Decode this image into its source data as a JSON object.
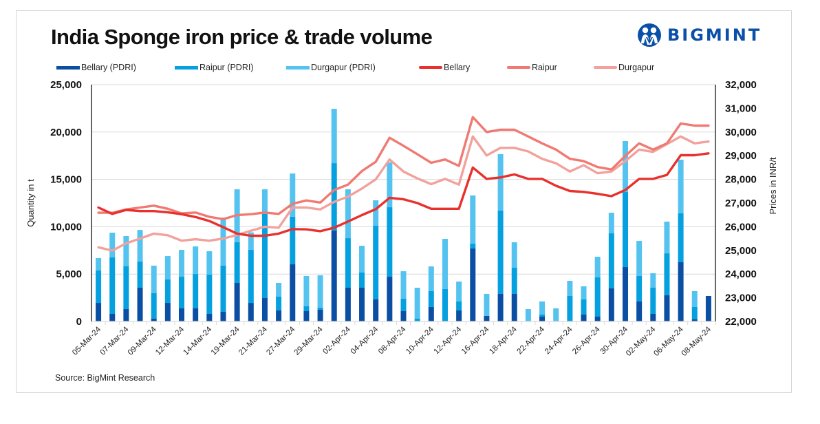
{
  "header": {
    "title": "India Sponge iron price & trade volume",
    "brand": "BIGMINT",
    "brand_icon": "bigmint-people-icon"
  },
  "footer": {
    "source": "Source: BigMint Research"
  },
  "colors": {
    "bellary_bar": "#0a4fa3",
    "raipur_bar": "#05a0df",
    "durgapur_bar": "#55c3f0",
    "bellary_line": "#e8302c",
    "raipur_line": "#f07a72",
    "durgapur_line": "#f2a19c",
    "brand": "#0a4fa8"
  },
  "legend": [
    {
      "label": "Bellary (PDRI)",
      "kind": "bar",
      "color": "#0a4fa3"
    },
    {
      "label": "Raipur (PDRI)",
      "kind": "bar",
      "color": "#05a0df"
    },
    {
      "label": "Durgapur (PDRI)",
      "kind": "bar",
      "color": "#55c3f0"
    },
    {
      "label": "Bellary",
      "kind": "line",
      "color": "#e8302c"
    },
    {
      "label": "Raipur",
      "kind": "line",
      "color": "#f07a72"
    },
    {
      "label": "Durgapur",
      "kind": "line",
      "color": "#f2a19c"
    }
  ],
  "chart_data": {
    "type": "bar",
    "subtype": "stacked bar + line, dual axis",
    "title": "India Sponge iron price & trade volume",
    "ylabel": "Quantity in t",
    "y2label": "Prices in INR/t",
    "ylim": [
      0,
      25000
    ],
    "y2lim": [
      22000,
      32000
    ],
    "yticks": [
      "0",
      "5,000",
      "10,000",
      "15,000",
      "20,000",
      "25,000"
    ],
    "y2ticks": [
      "22,000",
      "23,000",
      "24,000",
      "25,000",
      "26,000",
      "27,000",
      "28,000",
      "29,000",
      "30,000",
      "31,000",
      "32,000"
    ],
    "grid": true,
    "legend_position": "top",
    "xtick_labels": [
      "05-Mar-24",
      "07-Mar-24",
      "09-Mar-24",
      "12-Mar-24",
      "14-Mar-24",
      "19-Mar-24",
      "21-Mar-24",
      "27-Mar-24",
      "29-Mar-24",
      "02-Apr-24",
      "04-Apr-24",
      "08-Apr-24",
      "10-Apr-24",
      "12-Apr-24",
      "16-Apr-24",
      "18-Apr-24",
      "22-Apr-24",
      "24-Apr-24",
      "26-Apr-24",
      "30-Apr-24",
      "02-May-24",
      "06-May-24",
      "08-May-24"
    ],
    "xtick_every": 2,
    "n_points": 45,
    "series": [
      {
        "name": "Bellary (PDRI)",
        "kind": "bar",
        "axis": "left",
        "values": [
          1960,
          800,
          1310,
          3560,
          310,
          1960,
          1380,
          1380,
          800,
          1020,
          4070,
          1960,
          2470,
          1160,
          6030,
          1090,
          1240,
          9590,
          3560,
          3560,
          2330,
          4720,
          1090,
          0,
          1530,
          0,
          1160,
          7700,
          580,
          2910,
          2910,
          0,
          510,
          0,
          0,
          730,
          510,
          3490,
          5740,
          2110,
          800,
          2760,
          6250,
          220,
          2690
        ]
      },
      {
        "name": "Raipur (PDRI)",
        "kind": "bar",
        "axis": "left",
        "values": [
          3440,
          5960,
          4530,
          2760,
          2670,
          2470,
          3340,
          3630,
          4140,
          4870,
          4290,
          5600,
          8870,
          1460,
          5020,
          510,
          210,
          7120,
          5230,
          1600,
          7770,
          7340,
          1310,
          290,
          1670,
          3420,
          950,
          510,
          0,
          8790,
          2760,
          0,
          220,
          0,
          2690,
          1600,
          4140,
          5810,
          7920,
          2690,
          2760,
          4430,
          5160,
          1310,
          0
        ]
      },
      {
        "name": "Durgapur (PDRI)",
        "kind": "bar",
        "axis": "left",
        "values": [
          1290,
          2610,
          3170,
          3340,
          2910,
          2470,
          2840,
          2910,
          2470,
          5080,
          5590,
          1840,
          2610,
          1450,
          4570,
          3200,
          3420,
          5740,
          5160,
          2830,
          2690,
          4730,
          2900,
          3270,
          2610,
          5300,
          2100,
          5090,
          2330,
          5960,
          2690,
          1310,
          1380,
          1380,
          1600,
          1380,
          2180,
          2180,
          5380,
          3700,
          1530,
          3350,
          5670,
          1670,
          0
        ]
      },
      {
        "name": "Bellary",
        "kind": "line",
        "axis": "right",
        "values": [
          26810,
          26540,
          26710,
          26660,
          26660,
          26610,
          26530,
          26410,
          26240,
          25980,
          25710,
          25620,
          25620,
          25710,
          25900,
          25890,
          25810,
          25960,
          26220,
          26490,
          26740,
          27220,
          27160,
          27000,
          26760,
          26760,
          26760,
          28500,
          28020,
          28080,
          28210,
          28020,
          28020,
          27730,
          27510,
          27470,
          27390,
          27290,
          27550,
          28020,
          28020,
          28190,
          29020,
          29020,
          29100
        ]
      },
      {
        "name": "Raipur",
        "kind": "line",
        "axis": "right",
        "values": [
          26590,
          26590,
          26730,
          26810,
          26890,
          26760,
          26560,
          26600,
          26420,
          26320,
          26490,
          26530,
          26600,
          26540,
          26970,
          27110,
          27020,
          27550,
          27780,
          28350,
          28740,
          29760,
          29420,
          29060,
          28700,
          28840,
          28570,
          30630,
          30000,
          30100,
          30100,
          29810,
          29520,
          29260,
          28870,
          28770,
          28520,
          28420,
          28990,
          29520,
          29260,
          29520,
          30360,
          30270,
          30270
        ]
      },
      {
        "name": "Durgapur",
        "kind": "line",
        "axis": "right",
        "values": [
          25130,
          24990,
          25300,
          25500,
          25710,
          25640,
          25410,
          25470,
          25410,
          25500,
          25650,
          25830,
          26000,
          25960,
          26810,
          26810,
          26730,
          27050,
          27270,
          27610,
          28000,
          28840,
          28330,
          28040,
          27800,
          28020,
          27780,
          29810,
          29010,
          29330,
          29330,
          29180,
          28870,
          28680,
          28330,
          28600,
          28260,
          28330,
          28770,
          29260,
          29160,
          29490,
          29810,
          29520,
          29600
        ]
      }
    ]
  }
}
